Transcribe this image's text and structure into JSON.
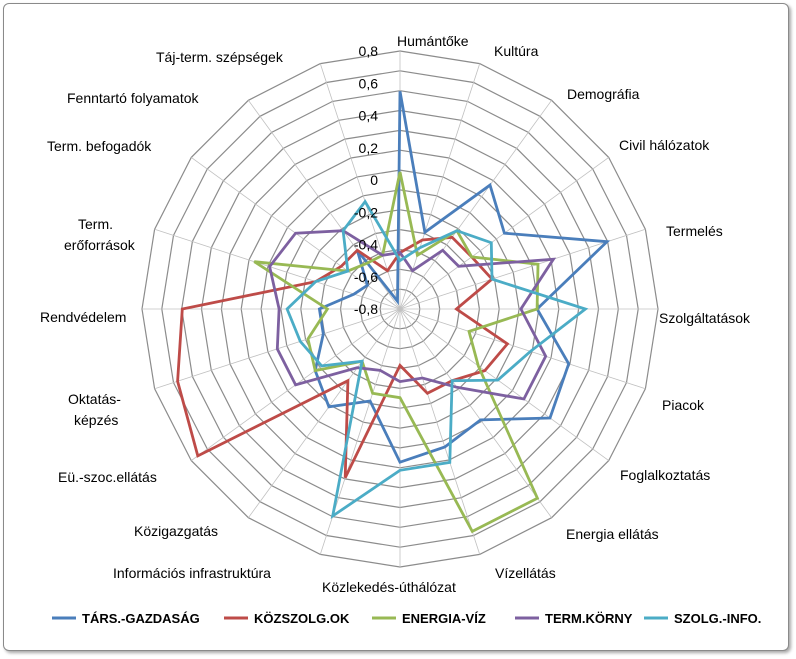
{
  "chart_data": {
    "type": "radar",
    "categories": [
      "Humántőke",
      "Kultúra",
      "Demográfia",
      "Civil hálózatok",
      "Termelés",
      "Szolgáltatások",
      "Piacok",
      "Foglalkoztatás",
      "Energia ellátás",
      "Vízellátás",
      "Közlekedés-úthálózat",
      "Információs infrastruktúra",
      "Közigazgatás",
      "Eü.-szoc.ellátás",
      "Oktatás-képzés",
      "Rendvédelem",
      "Term. erőforrások",
      "Term. befogadók",
      "Fenntartó folyamatok",
      "Táj-term. szépségek"
    ],
    "ticks": [
      "-0,8",
      "-0,6",
      "-0,4",
      "-0,2",
      "0",
      "0,2",
      "0,4",
      "0,6",
      "0,8"
    ],
    "rlim": [
      -0.8,
      0.8
    ],
    "series": [
      {
        "name": "TÁRS.-GAZDASÁG",
        "color": "#4a7ebb",
        "values": [
          0.55,
          -0.3,
          0.15,
          0.0,
          0.55,
          0.05,
          0.3,
          0.35,
          0.05,
          0.1,
          0.15,
          -0.2,
          -0.05,
          -0.15,
          -0.3,
          -0.3,
          -0.5,
          -0.55,
          -0.35,
          -0.75
        ]
      },
      {
        "name": "KÖZSZOLG.OK",
        "color": "#be4b48",
        "values": [
          -0.45,
          -0.35,
          -0.25,
          -0.25,
          -0.2,
          -0.45,
          -0.1,
          -0.15,
          -0.25,
          -0.25,
          -0.45,
          0.3,
          -0.25,
          0.75,
          0.65,
          0.55,
          -0.25,
          -0.35,
          -0.35,
          -0.55
        ]
      },
      {
        "name": "ENERGIA-VÍZ",
        "color": "#98b954",
        "values": [
          0.05,
          -0.45,
          -0.2,
          -0.25,
          0.1,
          0.05,
          -0.35,
          -0.2,
          0.65,
          0.65,
          -0.25,
          -0.25,
          -0.4,
          -0.15,
          -0.2,
          -0.35,
          0.15,
          -0.4,
          -0.45,
          -0.45
        ]
      },
      {
        "name": "TERM.KÖRNY",
        "color": "#7d60a0",
        "values": [
          -0.45,
          -0.55,
          -0.35,
          -0.35,
          0.2,
          -0.05,
          0.15,
          0.15,
          -0.2,
          -0.35,
          -0.35,
          -0.4,
          -0.35,
          0.0,
          0.0,
          -0.05,
          0.05,
          0.0,
          -0.2,
          -0.45
        ]
      },
      {
        "name": "SZOLG.-INFO.",
        "color": "#4bacc6",
        "values": [
          -0.5,
          -0.4,
          -0.2,
          -0.1,
          -0.2,
          0.35,
          0.05,
          -0.05,
          -0.25,
          0.2,
          0.2,
          0.55,
          -0.4,
          -0.2,
          -0.15,
          -0.1,
          -0.25,
          -0.4,
          -0.2,
          -0.1
        ]
      }
    ],
    "grid": true,
    "legend_position": "bottom"
  }
}
